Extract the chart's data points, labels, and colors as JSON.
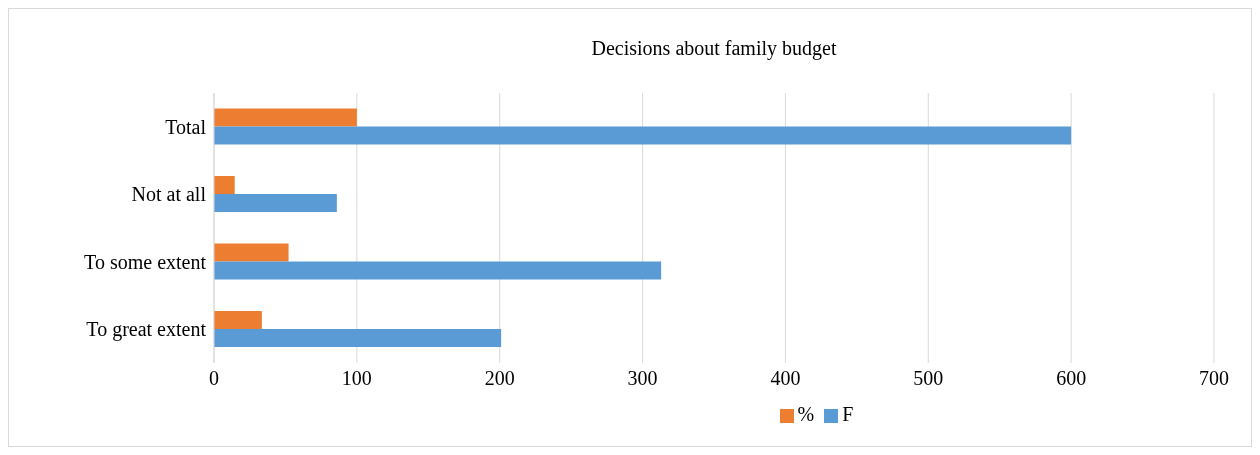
{
  "chart_data": {
    "type": "bar",
    "orientation": "horizontal",
    "title": "Decisions about family budget",
    "categories": [
      "Total",
      "Not at all",
      "To some extent",
      "To great extent"
    ],
    "series": [
      {
        "name": "%",
        "color": "#ed7d31",
        "values": [
          100,
          14.5,
          52.2,
          33.5
        ]
      },
      {
        "name": "F",
        "color": "#5b9bd5",
        "values": [
          600,
          86,
          313,
          201
        ]
      }
    ],
    "xlim": [
      0,
      700
    ],
    "xticks": [
      0,
      100,
      200,
      300,
      400,
      500,
      600,
      700
    ],
    "grid": "x",
    "legend": "bottom"
  }
}
